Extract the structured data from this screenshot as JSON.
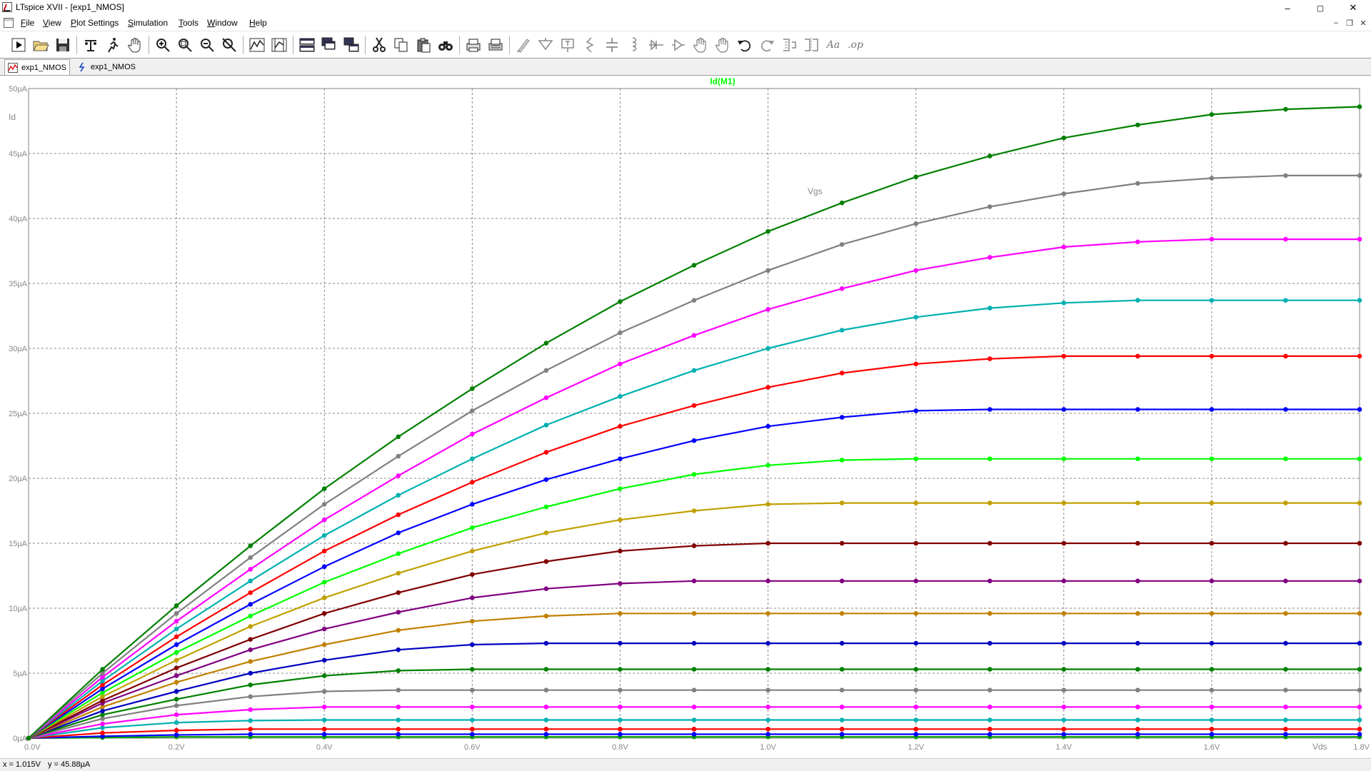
{
  "window": {
    "title": "LTspice XVII - [exp1_NMOS]",
    "controls": {
      "minimize": "–",
      "maximize": "▢",
      "close": "✕"
    },
    "mdi_controls": {
      "minimize": "–",
      "restore": "❐",
      "close": "✕"
    }
  },
  "menu": [
    "File",
    "View",
    "Plot Settings",
    "Simulation",
    "Tools",
    "Window",
    "Help"
  ],
  "toolbar": {
    "groups": [
      [
        "run-icon",
        "open-icon",
        "save-icon"
      ],
      [
        "control-panel-icon",
        "run-sim-icon",
        "pan-hand-icon"
      ],
      [
        "zoom-in-icon",
        "zoom-full-icon",
        "zoom-out-icon",
        "zoom-cancel-icon"
      ],
      [
        "autorange-icon",
        "manual-limits-icon"
      ],
      [
        "tile-horizontal-icon",
        "cascade-icon",
        "tile-vertical-icon"
      ],
      [
        "cut-icon",
        "copy-icon",
        "paste-icon",
        "find-icon"
      ],
      [
        "print-icon",
        "print-setup-icon"
      ],
      [
        "wire-icon",
        "ground-icon",
        "label-net-icon",
        "resistor-icon",
        "capacitor-icon",
        "inductor-icon",
        "diode-icon",
        "component-icon",
        "move-icon",
        "drag-icon",
        "undo-icon",
        "redo-icon",
        "rotate-icon",
        "mirror-icon",
        "text-icon",
        "spice-directive-icon"
      ]
    ],
    "text_glyphs": {
      "text-icon": "Aa",
      "spice-directive-icon": ".op"
    }
  },
  "tabs": [
    {
      "label": "exp1_NMOS",
      "icon": "waveform-icon",
      "active": true
    },
    {
      "label": "exp1_NMOS",
      "icon": "schematic-icon",
      "active": false
    }
  ],
  "status": {
    "x_readout": "x = 1.015V",
    "y_readout": "y = 45.88µA"
  },
  "chart_data": {
    "type": "line",
    "title": "Id(M1)",
    "title_color": "#00ff00",
    "ylabel": "Id",
    "xlabel": "Vds",
    "param_label": "Vgs",
    "xlim": [
      0,
      1.8
    ],
    "ylim": [
      0,
      50
    ],
    "grid": true,
    "x": [
      0,
      0.1,
      0.2,
      0.3,
      0.4,
      0.5,
      0.6,
      0.7,
      0.8,
      0.9,
      1.0,
      1.1,
      1.2,
      1.3,
      1.4,
      1.5,
      1.6,
      1.7,
      1.8
    ],
    "x_ticks": [
      "0.0V",
      "0.2V",
      "0.4V",
      "0.6V",
      "0.8V",
      "1.0V",
      "1.2V",
      "1.4V",
      "1.6V",
      "1.8V"
    ],
    "y_ticks": [
      "0µA",
      "5µA",
      "10µA",
      "15µA",
      "20µA",
      "25µA",
      "30µA",
      "35µA",
      "40µA",
      "45µA",
      "50µA"
    ],
    "series": [
      {
        "color": "#00a000",
        "values": [
          0,
          0.05,
          0.1,
          0.1,
          0.1,
          0.1,
          0.1,
          0.1,
          0.1,
          0.1,
          0.1,
          0.1,
          0.1,
          0.1,
          0.1,
          0.1,
          0.1,
          0.1,
          0.1
        ]
      },
      {
        "color": "#0000ff",
        "values": [
          0,
          0.15,
          0.25,
          0.3,
          0.3,
          0.3,
          0.3,
          0.3,
          0.3,
          0.3,
          0.3,
          0.3,
          0.3,
          0.3,
          0.3,
          0.3,
          0.3,
          0.3,
          0.3
        ]
      },
      {
        "color": "#ff0000",
        "values": [
          0,
          0.4,
          0.6,
          0.7,
          0.7,
          0.7,
          0.7,
          0.7,
          0.7,
          0.7,
          0.7,
          0.7,
          0.7,
          0.7,
          0.7,
          0.7,
          0.7,
          0.7,
          0.7
        ]
      },
      {
        "color": "#00b0b0",
        "values": [
          0,
          0.8,
          1.2,
          1.35,
          1.4,
          1.4,
          1.4,
          1.4,
          1.4,
          1.4,
          1.4,
          1.4,
          1.4,
          1.4,
          1.4,
          1.4,
          1.4,
          1.4,
          1.4
        ]
      },
      {
        "color": "#ff00ff",
        "values": [
          0,
          1.1,
          1.8,
          2.2,
          2.4,
          2.4,
          2.4,
          2.4,
          2.4,
          2.4,
          2.4,
          2.4,
          2.4,
          2.4,
          2.4,
          2.4,
          2.4,
          2.4,
          2.4
        ]
      },
      {
        "color": "#808080",
        "values": [
          0,
          1.5,
          2.5,
          3.2,
          3.6,
          3.7,
          3.7,
          3.7,
          3.7,
          3.7,
          3.7,
          3.7,
          3.7,
          3.7,
          3.7,
          3.7,
          3.7,
          3.7,
          3.7
        ]
      },
      {
        "color": "#008000",
        "values": [
          0,
          1.8,
          3.0,
          4.1,
          4.8,
          5.2,
          5.3,
          5.3,
          5.3,
          5.3,
          5.3,
          5.3,
          5.3,
          5.3,
          5.3,
          5.3,
          5.3,
          5.3,
          5.3
        ]
      },
      {
        "color": "#0000c0",
        "values": [
          0,
          2.1,
          3.6,
          5.0,
          6.0,
          6.8,
          7.2,
          7.3,
          7.3,
          7.3,
          7.3,
          7.3,
          7.3,
          7.3,
          7.3,
          7.3,
          7.3,
          7.3,
          7.3
        ]
      },
      {
        "color": "#c08000",
        "values": [
          0,
          2.4,
          4.3,
          5.9,
          7.2,
          8.3,
          9.0,
          9.4,
          9.6,
          9.6,
          9.6,
          9.6,
          9.6,
          9.6,
          9.6,
          9.6,
          9.6,
          9.6,
          9.6
        ]
      },
      {
        "color": "#800080",
        "values": [
          0,
          2.7,
          4.8,
          6.8,
          8.4,
          9.7,
          10.8,
          11.5,
          11.9,
          12.1,
          12.1,
          12.1,
          12.1,
          12.1,
          12.1,
          12.1,
          12.1,
          12.1,
          12.1
        ]
      },
      {
        "color": "#800000",
        "values": [
          0,
          2.9,
          5.4,
          7.6,
          9.6,
          11.2,
          12.6,
          13.6,
          14.4,
          14.8,
          15.0,
          15.0,
          15.0,
          15.0,
          15.0,
          15.0,
          15.0,
          15.0,
          15.0
        ]
      },
      {
        "color": "#c0a000",
        "values": [
          0,
          3.2,
          6.0,
          8.6,
          10.8,
          12.7,
          14.4,
          15.8,
          16.8,
          17.5,
          18.0,
          18.1,
          18.1,
          18.1,
          18.1,
          18.1,
          18.1,
          18.1,
          18.1
        ]
      },
      {
        "color": "#00ff00",
        "values": [
          0,
          3.5,
          6.6,
          9.4,
          12.0,
          14.2,
          16.2,
          17.8,
          19.2,
          20.3,
          21.0,
          21.4,
          21.5,
          21.5,
          21.5,
          21.5,
          21.5,
          21.5,
          21.5
        ]
      },
      {
        "color": "#0000ff",
        "values": [
          0,
          3.8,
          7.2,
          10.3,
          13.2,
          15.8,
          18.0,
          19.9,
          21.5,
          22.9,
          24.0,
          24.7,
          25.2,
          25.3,
          25.3,
          25.3,
          25.3,
          25.3,
          25.3
        ]
      },
      {
        "color": "#ff0000",
        "values": [
          0,
          4.1,
          7.8,
          11.2,
          14.4,
          17.2,
          19.7,
          22.0,
          24.0,
          25.6,
          27.0,
          28.1,
          28.8,
          29.2,
          29.4,
          29.4,
          29.4,
          29.4,
          29.4
        ]
      },
      {
        "color": "#00b0b0",
        "values": [
          0,
          4.4,
          8.4,
          12.1,
          15.6,
          18.7,
          21.5,
          24.1,
          26.3,
          28.3,
          30.0,
          31.4,
          32.4,
          33.1,
          33.5,
          33.7,
          33.7,
          33.7,
          33.7
        ]
      },
      {
        "color": "#ff00ff",
        "values": [
          0,
          4.7,
          9.0,
          13.0,
          16.8,
          20.2,
          23.4,
          26.2,
          28.8,
          31.0,
          33.0,
          34.6,
          36.0,
          37.0,
          37.8,
          38.2,
          38.4,
          38.4,
          38.4
        ]
      },
      {
        "color": "#808080",
        "values": [
          0,
          5.0,
          9.6,
          13.9,
          18.0,
          21.7,
          25.2,
          28.3,
          31.2,
          33.7,
          36.0,
          38.0,
          39.6,
          40.9,
          41.9,
          42.7,
          43.1,
          43.3,
          43.3
        ]
      },
      {
        "color": "#008000",
        "values": [
          0,
          5.3,
          10.2,
          14.8,
          19.2,
          23.2,
          26.9,
          30.4,
          33.6,
          36.4,
          39.0,
          41.2,
          43.2,
          44.8,
          46.2,
          47.2,
          48.0,
          48.4,
          48.6
        ]
      }
    ]
  }
}
